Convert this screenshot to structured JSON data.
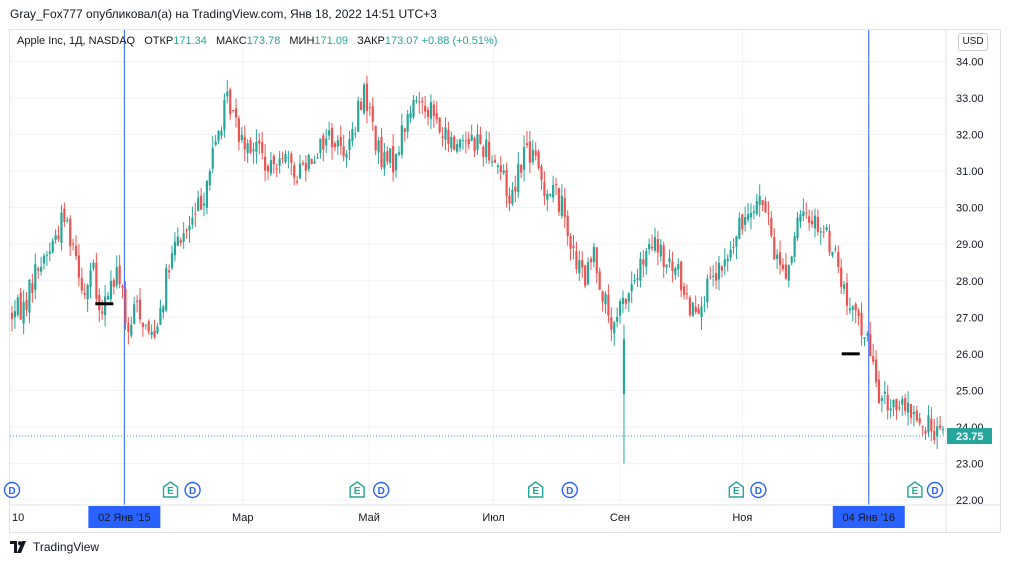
{
  "header": {
    "text": "Gray_Fox777 опубликовал(а) на TradingView.com, Янв 18, 2022 14:51 UTC+3"
  },
  "legend": {
    "symbol": "Apple Inc, 1Д, NASDAQ",
    "open_label": "ОТКР",
    "open": "171.34",
    "high_label": "МАКС",
    "high": "173.78",
    "low_label": "МИН",
    "low": "171.09",
    "close_label": "ЗАКР",
    "close": "173.07",
    "change": "+0.88 (+0.51%)"
  },
  "currency": "USD",
  "footer": {
    "brand": "TradingView"
  },
  "colors": {
    "up": "#26a69a",
    "down": "#ef5350",
    "vline": "#2962ff",
    "badge_e": "#26a69a",
    "badge_d": "#2962ff"
  },
  "chart_data": {
    "type": "candlestick",
    "y_ticks": [
      "34.00",
      "33.00",
      "32.00",
      "31.00",
      "30.00",
      "29.00",
      "28.00",
      "27.00",
      "26.00",
      "25.00",
      "24.00",
      "23.00",
      "22.00"
    ],
    "ylim": [
      22,
      34.35
    ],
    "x_labels": [
      {
        "label": "10",
        "day": 0
      },
      {
        "label": "02 Янв '15",
        "day": 56,
        "highlight": true
      },
      {
        "label": "Мар",
        "day": 115
      },
      {
        "label": "Май",
        "day": 178
      },
      {
        "label": "Июл",
        "day": 240
      },
      {
        "label": "Сен",
        "day": 303
      },
      {
        "label": "Ноя",
        "day": 364
      },
      {
        "label": "04 Янв '16",
        "day": 427,
        "highlight": true
      }
    ],
    "x_range": [
      0,
      464
    ],
    "price_label": {
      "value": 23.75,
      "text": "23.75"
    },
    "vertical_lines": [
      56,
      427
    ],
    "markers": [
      {
        "day": 46,
        "price": 27.37
      },
      {
        "day": 418,
        "price": 26.0
      }
    ],
    "events": [
      {
        "type": "D",
        "day": 0
      },
      {
        "type": "E",
        "day": 79
      },
      {
        "type": "D",
        "day": 90
      },
      {
        "type": "E",
        "day": 172
      },
      {
        "type": "D",
        "day": 184
      },
      {
        "type": "E",
        "day": 261
      },
      {
        "type": "D",
        "day": 278
      },
      {
        "type": "E",
        "day": 361
      },
      {
        "type": "D",
        "day": 372
      },
      {
        "type": "E",
        "day": 450
      },
      {
        "type": "D",
        "day": 460
      }
    ],
    "path_points": [
      [
        0,
        27.1
      ],
      [
        6,
        27.3
      ],
      [
        12,
        28.3
      ],
      [
        20,
        29.0
      ],
      [
        26,
        29.8
      ],
      [
        32,
        28.8
      ],
      [
        36,
        27.6
      ],
      [
        40,
        28.4
      ],
      [
        44,
        26.8
      ],
      [
        48,
        27.8
      ],
      [
        54,
        28.2
      ],
      [
        58,
        26.3
      ],
      [
        62,
        27.5
      ],
      [
        66,
        26.8
      ],
      [
        70,
        26.5
      ],
      [
        74,
        27.3
      ],
      [
        78,
        28.3
      ],
      [
        82,
        29.0
      ],
      [
        90,
        29.6
      ],
      [
        96,
        30.5
      ],
      [
        102,
        31.9
      ],
      [
        108,
        33.0
      ],
      [
        112,
        32.2
      ],
      [
        118,
        31.8
      ],
      [
        124,
        31.6
      ],
      [
        128,
        30.8
      ],
      [
        134,
        31.7
      ],
      [
        140,
        30.8
      ],
      [
        146,
        31.3
      ],
      [
        152,
        31.6
      ],
      [
        158,
        32.0
      ],
      [
        164,
        31.6
      ],
      [
        170,
        31.9
      ],
      [
        175,
        33.3
      ],
      [
        180,
        32.2
      ],
      [
        184,
        31.2
      ],
      [
        190,
        31.3
      ],
      [
        196,
        32.3
      ],
      [
        202,
        33.0
      ],
      [
        208,
        32.8
      ],
      [
        214,
        32.0
      ],
      [
        220,
        31.7
      ],
      [
        226,
        32.0
      ],
      [
        232,
        31.8
      ],
      [
        238,
        31.6
      ],
      [
        244,
        31.0
      ],
      [
        248,
        30.2
      ],
      [
        252,
        31.0
      ],
      [
        256,
        31.7
      ],
      [
        261,
        31.2
      ],
      [
        266,
        30.5
      ],
      [
        270,
        30.5
      ],
      [
        276,
        29.8
      ],
      [
        280,
        28.6
      ],
      [
        286,
        28.0
      ],
      [
        290,
        28.8
      ],
      [
        295,
        27.5
      ],
      [
        300,
        26.5
      ],
      [
        303,
        27.2
      ],
      [
        308,
        27.8
      ],
      [
        314,
        28.4
      ],
      [
        320,
        29.0
      ],
      [
        326,
        28.4
      ],
      [
        332,
        28.2
      ],
      [
        338,
        27.3
      ],
      [
        344,
        27.5
      ],
      [
        350,
        28.0
      ],
      [
        356,
        28.5
      ],
      [
        362,
        29.3
      ],
      [
        368,
        30.2
      ],
      [
        374,
        30.2
      ],
      [
        380,
        28.8
      ],
      [
        386,
        28.2
      ],
      [
        392,
        29.6
      ],
      [
        398,
        29.8
      ],
      [
        404,
        29.4
      ],
      [
        410,
        28.8
      ],
      [
        414,
        27.8
      ],
      [
        418,
        27.0
      ],
      [
        422,
        27.0
      ],
      [
        426,
        26.4
      ],
      [
        430,
        25.4
      ],
      [
        434,
        24.6
      ],
      [
        440,
        24.7
      ],
      [
        446,
        24.3
      ],
      [
        450,
        24.5
      ],
      [
        454,
        23.8
      ],
      [
        458,
        24.1
      ],
      [
        462,
        23.8
      ],
      [
        464,
        23.75
      ]
    ]
  }
}
